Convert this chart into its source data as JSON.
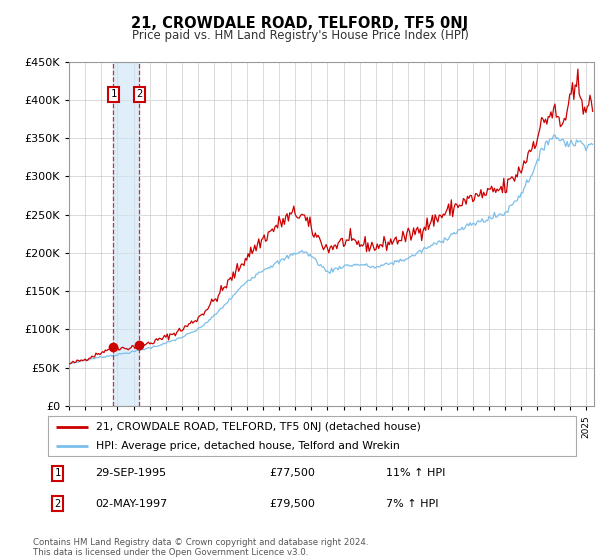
{
  "title": "21, CROWDALE ROAD, TELFORD, TF5 0NJ",
  "subtitle": "Price paid vs. HM Land Registry's House Price Index (HPI)",
  "legend_line1": "21, CROWDALE ROAD, TELFORD, TF5 0NJ (detached house)",
  "legend_line2": "HPI: Average price, detached house, Telford and Wrekin",
  "sale1_date": 1995.75,
  "sale1_price": 77500,
  "sale2_date": 1997.35,
  "sale2_price": 79500,
  "sale1_annotation": "29-SEP-1995",
  "sale1_price_label": "£77,500",
  "sale1_hpi": "11% ↑ HPI",
  "sale2_annotation": "02-MAY-1997",
  "sale2_price_label": "£79,500",
  "sale2_hpi": "7% ↑ HPI",
  "footer": "Contains HM Land Registry data © Crown copyright and database right 2024.\nThis data is licensed under the Open Government Licence v3.0.",
  "hpi_color": "#7bbfea",
  "sale_color": "#cc0000",
  "ylim": [
    0,
    450000
  ],
  "xlim_start": 1993.0,
  "xlim_end": 2025.5,
  "yticks": [
    0,
    50000,
    100000,
    150000,
    200000,
    250000,
    300000,
    350000,
    400000,
    450000
  ]
}
